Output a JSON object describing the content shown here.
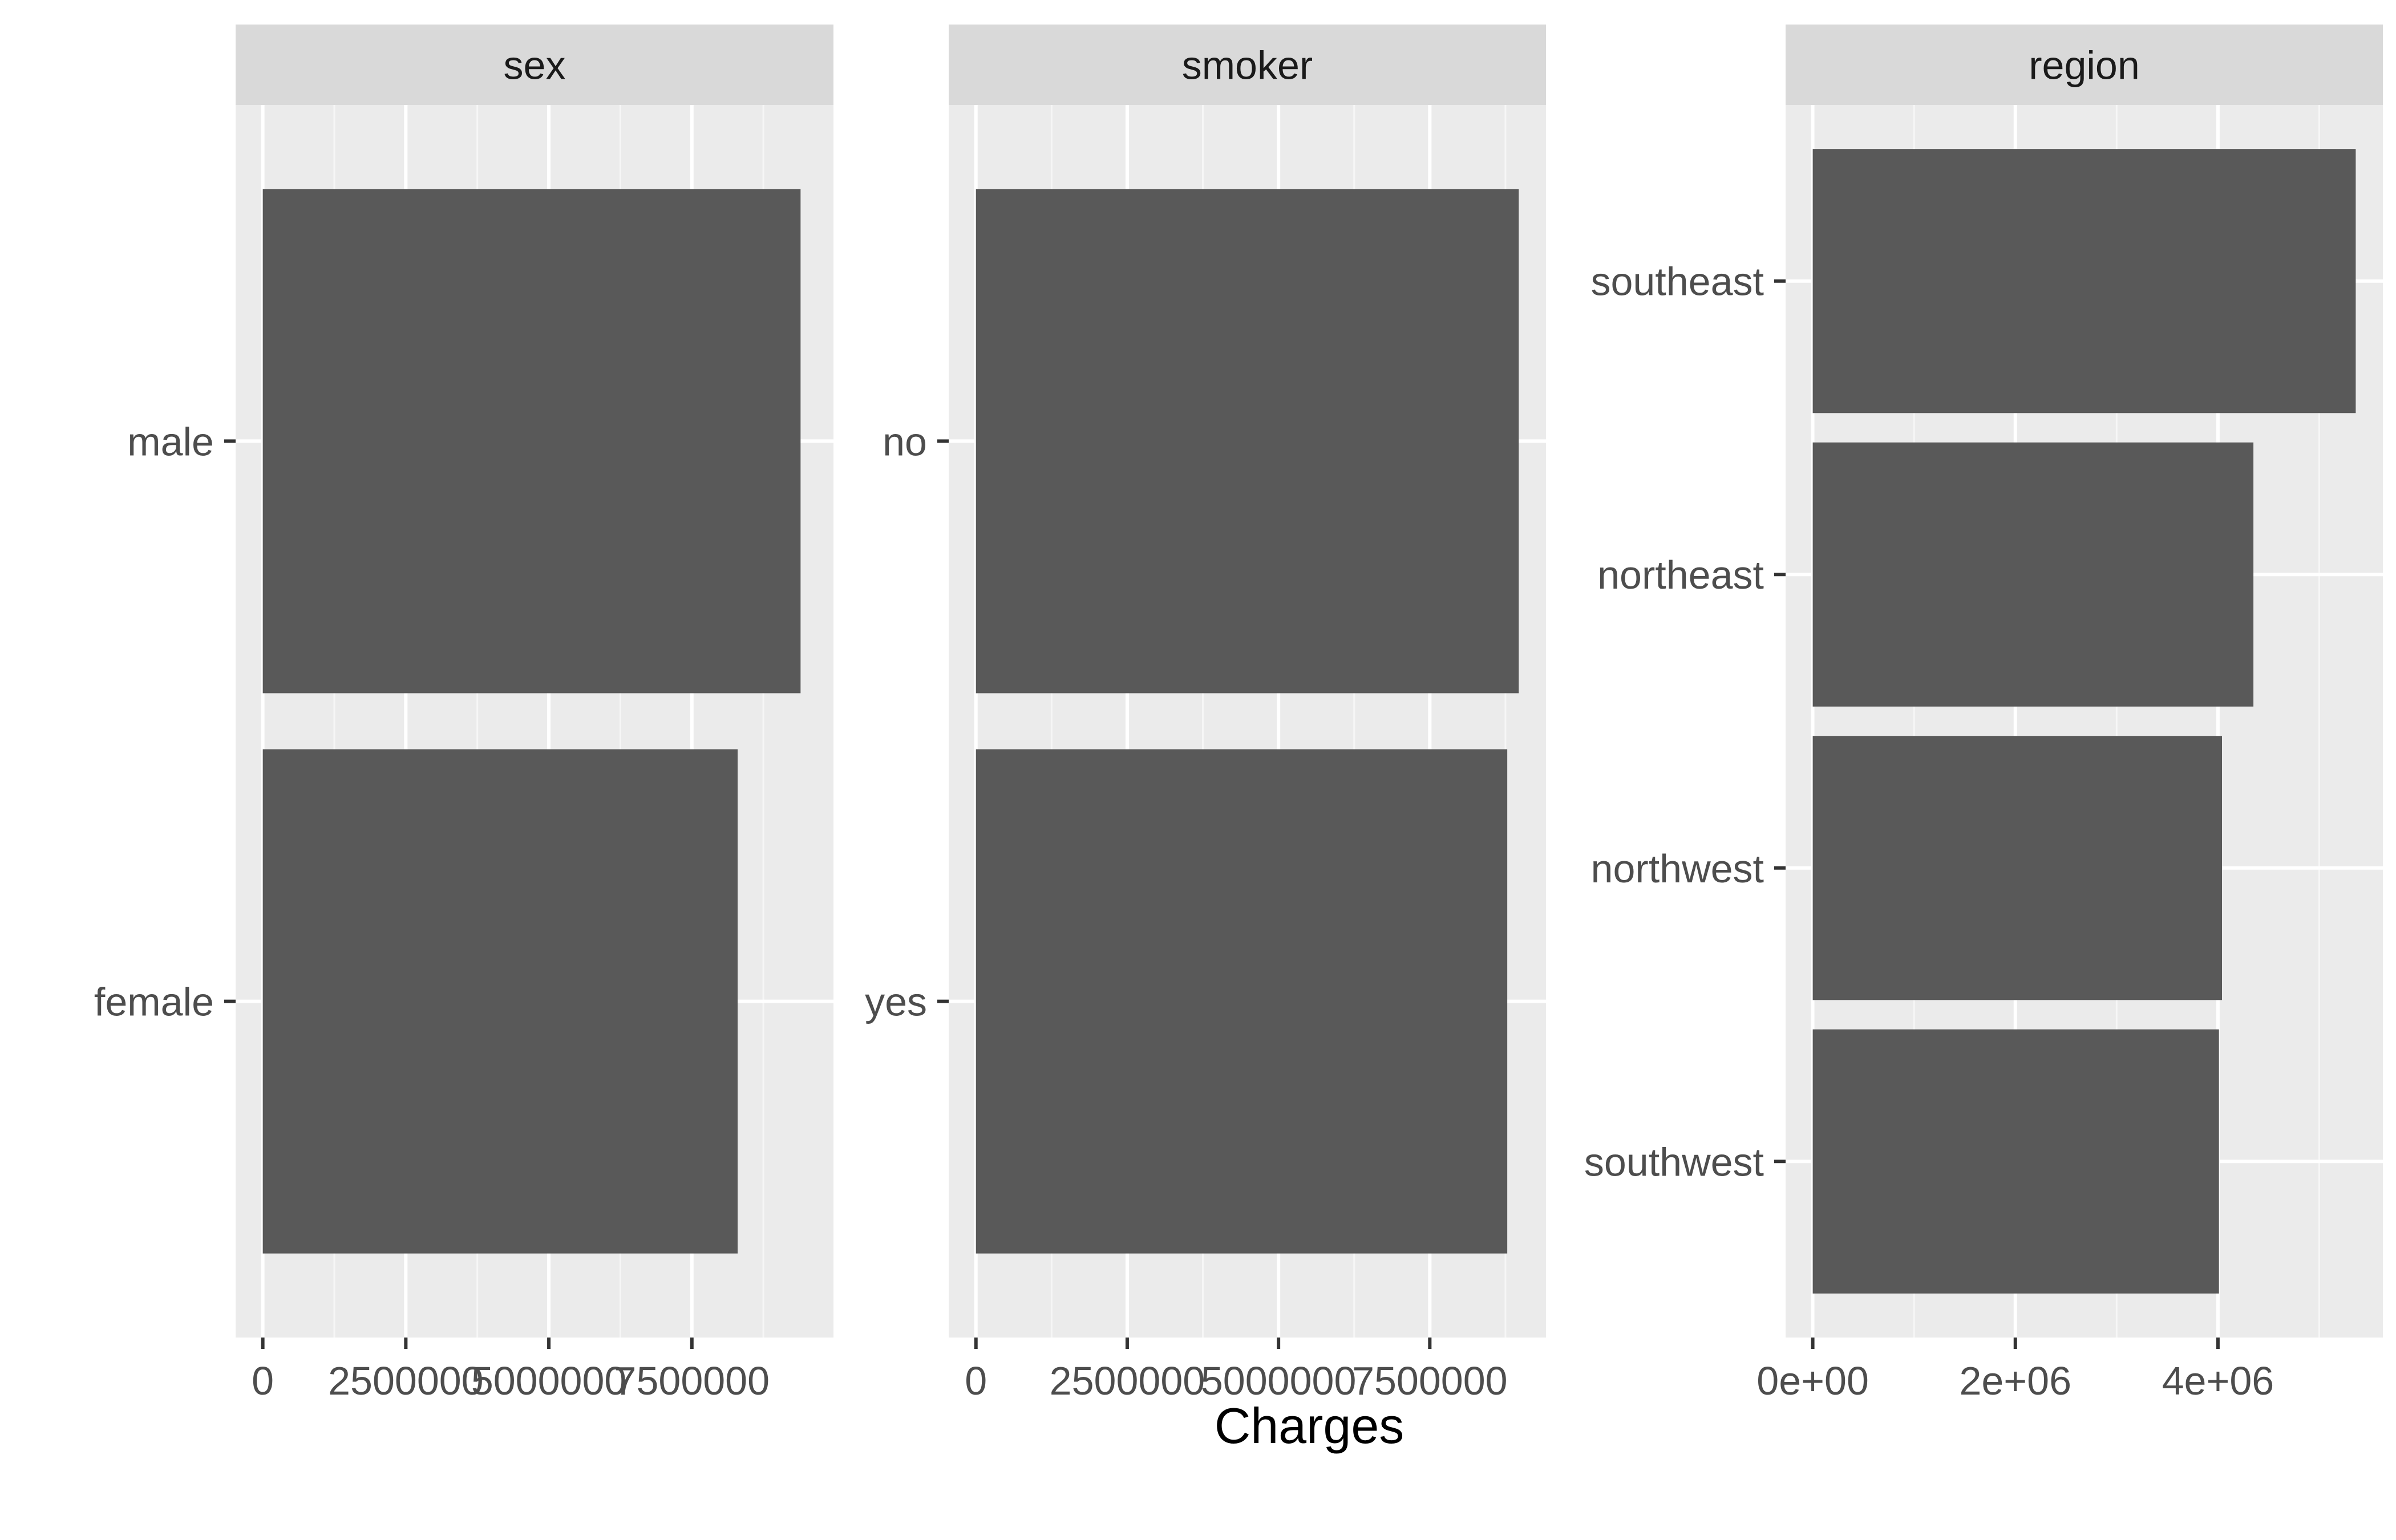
{
  "chart_data": [
    {
      "type": "bar",
      "orientation": "horizontal",
      "facet_label": "sex",
      "categories": [
        "male",
        "female"
      ],
      "values": [
        9400000,
        8300000
      ],
      "xlim": [
        -475000,
        9975000
      ],
      "x_ticks": [
        0,
        2500000,
        5000000,
        7500000
      ],
      "x_tick_labels": [
        "0",
        "2500000",
        "5000000",
        "7500000"
      ],
      "grid": true
    },
    {
      "type": "bar",
      "orientation": "horizontal",
      "facet_label": "smoker",
      "categories": [
        "no",
        "yes"
      ],
      "values": [
        8970000,
        8780000
      ],
      "xlim": [
        -450000,
        9420000
      ],
      "x_ticks": [
        0,
        2500000,
        5000000,
        7500000
      ],
      "x_tick_labels": [
        "0",
        "2500000",
        "5000000",
        "7500000"
      ],
      "grid": true
    },
    {
      "type": "bar",
      "orientation": "horizontal",
      "facet_label": "region",
      "categories": [
        "southeast",
        "northeast",
        "northwest",
        "southwest"
      ],
      "values": [
        5360000,
        4350000,
        4040000,
        4010000
      ],
      "xlim": [
        -268000,
        5628000
      ],
      "x_ticks": [
        0,
        2000000,
        4000000
      ],
      "x_tick_labels": [
        "0e+00",
        "2e+06",
        "4e+06"
      ],
      "grid": true
    }
  ],
  "axes": {
    "xlabel": "Charges"
  },
  "colors": {
    "bar_fill": "#595959",
    "panel_background": "#EBEBEB",
    "strip_background": "#D9D9D9",
    "grid_major": "#FFFFFF",
    "tick_color": "#333333"
  }
}
